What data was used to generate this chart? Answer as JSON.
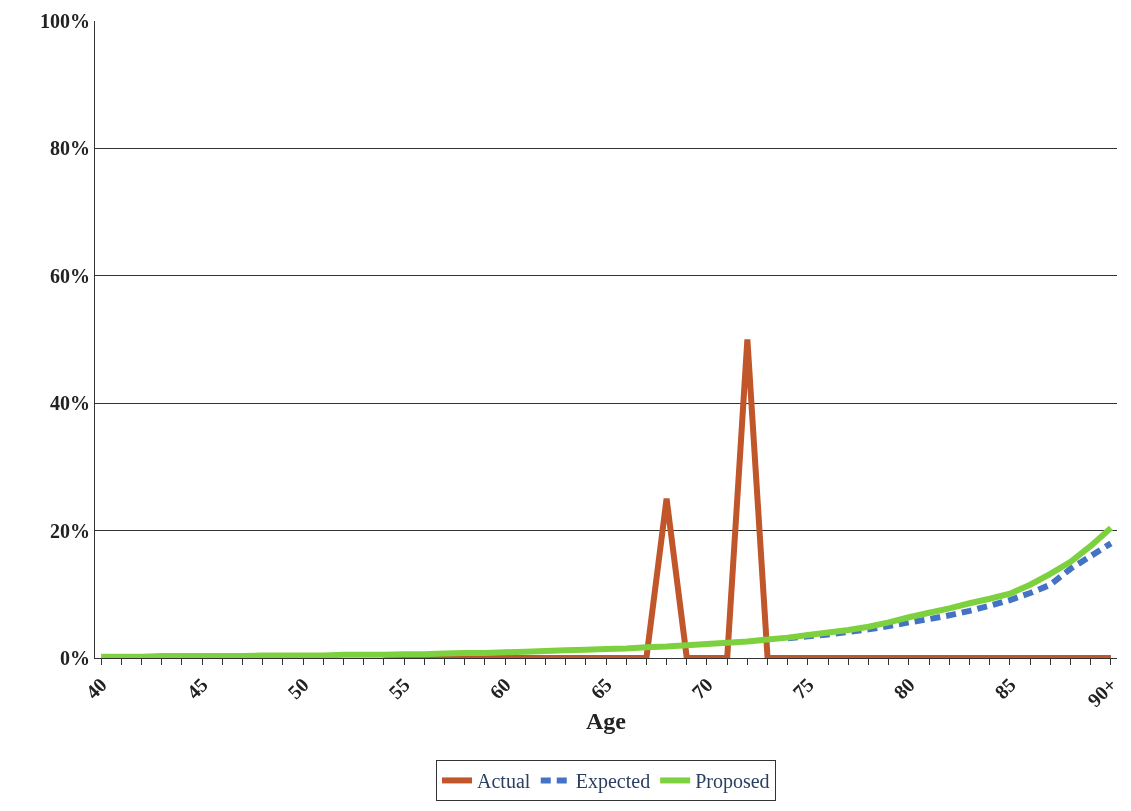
{
  "chart_data": {
    "type": "line",
    "xlabel": "Age",
    "categories": [
      "40",
      null,
      null,
      null,
      null,
      "45",
      null,
      null,
      null,
      null,
      "50",
      null,
      null,
      null,
      null,
      "55",
      null,
      null,
      null,
      null,
      "60",
      null,
      null,
      null,
      null,
      "65",
      null,
      null,
      null,
      null,
      "70",
      null,
      null,
      null,
      null,
      "75",
      null,
      null,
      null,
      null,
      "80",
      null,
      null,
      null,
      null,
      "85",
      null,
      null,
      null,
      null,
      "90+"
    ],
    "series": [
      {
        "name": "Actual",
        "color": "#c0562a",
        "line_style": "solid",
        "values": [
          null,
          null,
          null,
          null,
          null,
          null,
          null,
          null,
          null,
          null,
          null,
          null,
          null,
          null,
          0,
          0,
          0,
          0,
          0,
          0,
          0,
          0,
          0,
          0,
          0,
          0,
          0,
          0,
          25,
          0,
          0,
          0,
          50,
          0,
          0,
          0,
          0,
          0,
          0,
          0,
          0,
          0,
          0,
          0,
          0,
          0,
          0,
          0,
          0,
          0,
          0
        ]
      },
      {
        "name": "Expected",
        "color": "#4472c4",
        "line_style": "dashed",
        "values": [
          null,
          null,
          null,
          null,
          null,
          null,
          null,
          null,
          null,
          null,
          null,
          null,
          null,
          null,
          null,
          null,
          null,
          null,
          null,
          null,
          null,
          null,
          null,
          null,
          null,
          null,
          null,
          null,
          null,
          null,
          null,
          null,
          null,
          null,
          3.1,
          3.4,
          3.7,
          4.1,
          4.5,
          5.0,
          5.6,
          6.1,
          6.7,
          7.4,
          8.2,
          9.1,
          10.2,
          11.5,
          14.0,
          16.0,
          18.0
        ]
      },
      {
        "name": "Proposed",
        "color": "#7dd13f",
        "line_style": "solid",
        "values": [
          0.2,
          0.2,
          0.2,
          0.3,
          0.3,
          0.3,
          0.3,
          0.3,
          0.4,
          0.4,
          0.4,
          0.4,
          0.5,
          0.5,
          0.5,
          0.6,
          0.6,
          0.7,
          0.8,
          0.8,
          0.9,
          1.0,
          1.1,
          1.2,
          1.3,
          1.4,
          1.5,
          1.7,
          1.8,
          2.0,
          2.2,
          2.4,
          2.6,
          2.9,
          3.2,
          3.6,
          4.0,
          4.4,
          4.9,
          5.6,
          6.4,
          7.1,
          7.8,
          8.6,
          9.3,
          10.1,
          11.5,
          13.2,
          15.1,
          17.6,
          20.4
        ]
      }
    ],
    "ylim": [
      0,
      100
    ],
    "yticks": [
      {
        "value": 0,
        "label": "0%"
      },
      {
        "value": 20,
        "label": "20%"
      },
      {
        "value": 40,
        "label": "40%"
      },
      {
        "value": 60,
        "label": "60%"
      },
      {
        "value": 80,
        "label": "80%"
      },
      {
        "value": 100,
        "label": "100%"
      }
    ],
    "grid": "y",
    "legend": "bottom",
    "marker": "none"
  }
}
